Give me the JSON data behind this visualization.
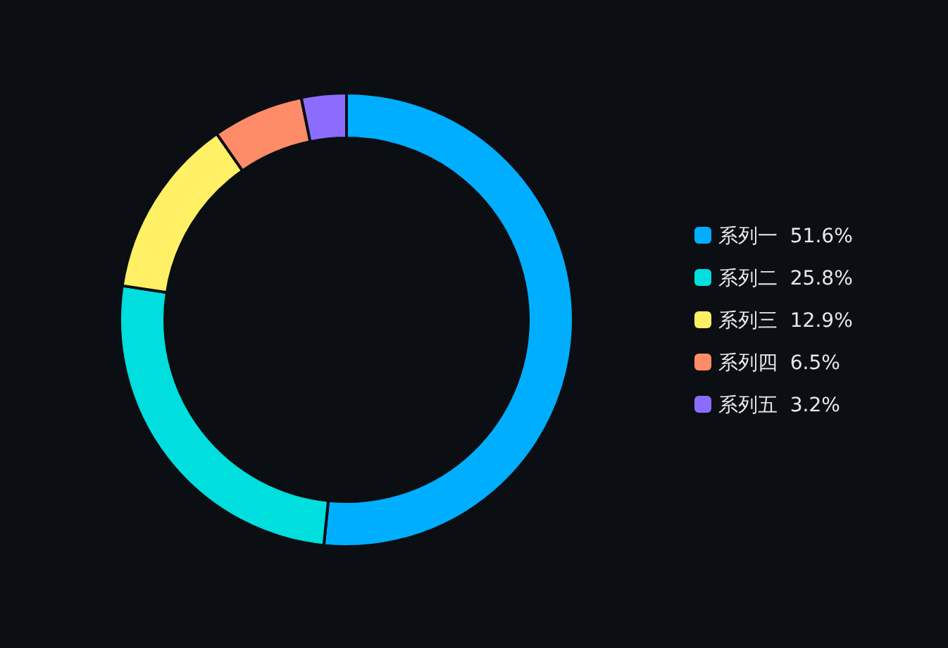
{
  "chart_data": {
    "type": "donut",
    "categories": [
      "系列一",
      "系列二",
      "系列三",
      "系列四",
      "系列五"
    ],
    "values": [
      51.6,
      25.8,
      12.9,
      6.5,
      3.2
    ],
    "value_labels": [
      "51.6%",
      "25.8%",
      "12.9%",
      "6.5%",
      "3.2%"
    ],
    "colors": [
      "#00aeff",
      "#00dede",
      "#fff065",
      "#ff8c69",
      "#8c6cff"
    ],
    "legend": "right"
  }
}
